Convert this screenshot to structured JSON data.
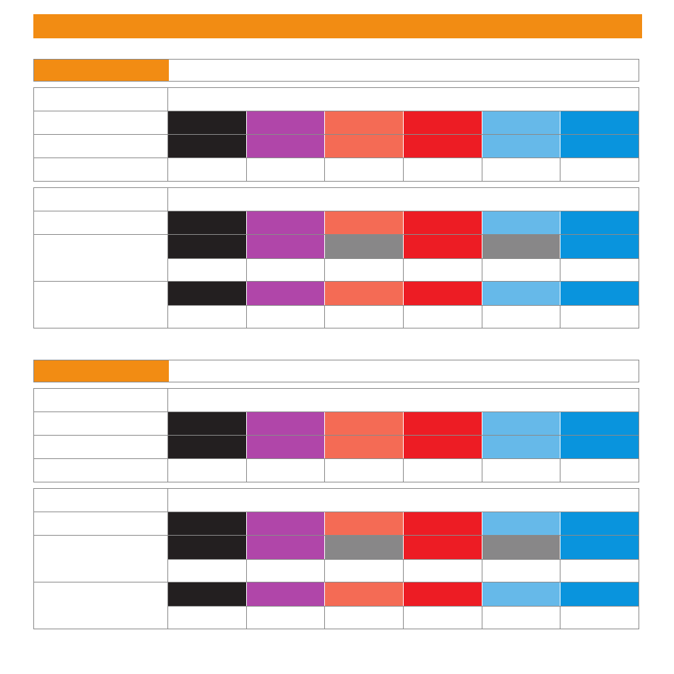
{
  "colors": {
    "accent": "#f28c13",
    "border": "#8a8a8a",
    "gray": "#888788"
  },
  "palette": [
    "#231f20",
    "#b046a9",
    "#f46b55",
    "#ed1c24",
    "#66b9e9",
    "#0994dd"
  ],
  "palette_alt": [
    "#231f20",
    "#b046a9",
    "#888788",
    "#ed1c24",
    "#888788",
    "#0994dd"
  ],
  "sections": [
    {
      "id": "section-1"
    },
    {
      "id": "section-2"
    }
  ]
}
